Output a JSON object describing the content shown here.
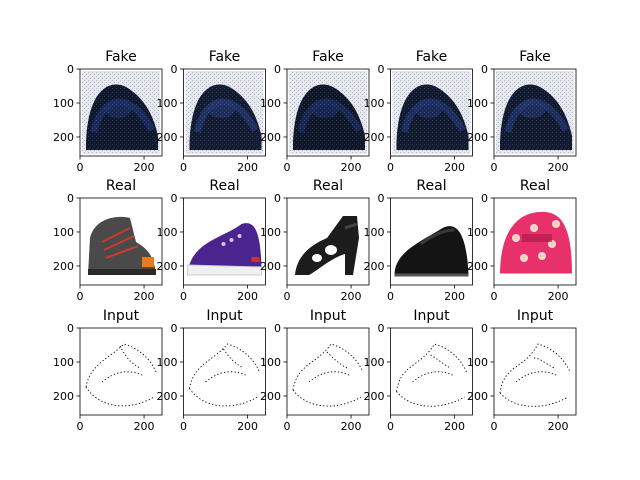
{
  "chart_data": {
    "type": "image-grid",
    "rows": [
      {
        "label": "Fake",
        "kind": "fake",
        "images": [
          {
            "icon": "fake-generated-shoe-icon",
            "colors": [
              "#10182c",
              "#1d2f66"
            ]
          },
          {
            "icon": "fake-generated-shoe-icon",
            "colors": [
              "#131b30",
              "#24366e"
            ]
          },
          {
            "icon": "fake-generated-shoe-icon",
            "colors": [
              "#101828",
              "#1b2c5e"
            ]
          },
          {
            "icon": "fake-generated-shoe-icon",
            "colors": [
              "#121a2e",
              "#20326a"
            ]
          },
          {
            "icon": "fake-generated-shoe-icon",
            "colors": [
              "#121a2e",
              "#22346c"
            ]
          }
        ]
      },
      {
        "label": "Real",
        "kind": "real",
        "images": [
          {
            "icon": "grey-hiking-boot-icon",
            "colors": [
              "#4a4a4a",
              "#cc3a2a"
            ]
          },
          {
            "icon": "purple-sneaker-icon",
            "colors": [
              "#4a2590",
              "#f0f0f0"
            ]
          },
          {
            "icon": "black-cutout-heel-icon",
            "colors": [
              "#1c1c1c",
              "#444444"
            ]
          },
          {
            "icon": "black-loafer-icon",
            "colors": [
              "#141414",
              "#3a3a3a"
            ]
          },
          {
            "icon": "pink-floral-baby-shoe-icon",
            "colors": [
              "#e8306a",
              "#ffd7e6"
            ]
          }
        ]
      },
      {
        "label": "Input",
        "kind": "input",
        "images": [
          {
            "icon": "shoe-edge-sketch-icon",
            "colors": [
              "#000000"
            ]
          },
          {
            "icon": "shoe-edge-sketch-icon",
            "colors": [
              "#000000"
            ]
          },
          {
            "icon": "shoe-edge-sketch-icon",
            "colors": [
              "#000000"
            ]
          },
          {
            "icon": "shoe-edge-sketch-icon",
            "colors": [
              "#000000"
            ]
          },
          {
            "icon": "shoe-edge-sketch-icon",
            "colors": [
              "#000000"
            ]
          }
        ]
      }
    ],
    "x_ticks": [
      "0",
      "200"
    ],
    "y_ticks": [
      "0",
      "100",
      "200"
    ],
    "xlim": [
      0,
      256
    ],
    "ylim": [
      256,
      0
    ],
    "grid": false
  }
}
